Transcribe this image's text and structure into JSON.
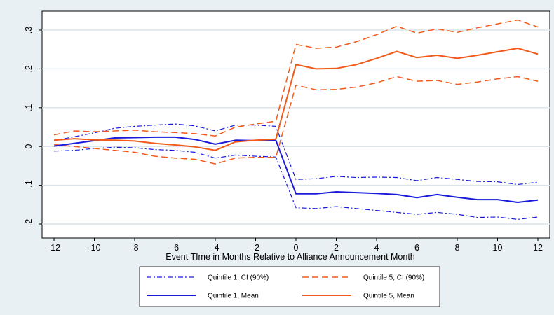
{
  "chart_data": {
    "type": "line",
    "title": "",
    "xlabel": "Event TIme in Months Relative to Alliance Announcement Month",
    "ylabel": "",
    "x": [
      -12,
      -11,
      -10,
      -9,
      -8,
      -7,
      -6,
      -5,
      -4,
      -3,
      -2,
      -1,
      0,
      1,
      2,
      3,
      4,
      5,
      6,
      7,
      8,
      9,
      10,
      11,
      12
    ],
    "xlim": [
      -12,
      12
    ],
    "ylim": [
      -0.2,
      0.3
    ],
    "xticks": [
      -12,
      -10,
      -8,
      -6,
      -4,
      -2,
      0,
      2,
      4,
      6,
      8,
      10,
      12
    ],
    "xtick_labels": [
      "-12",
      "-10",
      "-8",
      "-6",
      "-4",
      "-2",
      "0",
      "2",
      "4",
      "6",
      "8",
      "10",
      "12"
    ],
    "yticks": [
      -0.2,
      -0.1,
      0,
      0.1,
      0.2,
      0.3
    ],
    "ytick_labels": [
      "-.2",
      "-.1",
      "0",
      ".1",
      ".2",
      ".3"
    ],
    "grid": "horizontal",
    "legend_position": "bottom",
    "series": [
      {
        "name": "Quintile 1, CI (90%)",
        "style": "dash-dot",
        "color": "#1a1adc",
        "width": 1.2,
        "values": [
          0.015,
          0.025,
          0.035,
          0.047,
          0.052,
          0.055,
          0.058,
          0.053,
          0.04,
          0.055,
          0.055,
          0.052,
          -0.085,
          -0.083,
          -0.077,
          -0.08,
          -0.079,
          -0.08,
          -0.088,
          -0.08,
          -0.085,
          -0.09,
          -0.091,
          -0.098,
          -0.092
        ]
      },
      {
        "name": "",
        "style": "dash-dot",
        "color": "#1a1adc",
        "width": 1.2,
        "values": [
          -0.012,
          -0.01,
          -0.005,
          -0.002,
          -0.003,
          -0.008,
          -0.01,
          -0.015,
          -0.03,
          -0.022,
          -0.025,
          -0.027,
          -0.158,
          -0.16,
          -0.155,
          -0.16,
          -0.165,
          -0.17,
          -0.175,
          -0.17,
          -0.175,
          -0.183,
          -0.182,
          -0.188,
          -0.182
        ]
      },
      {
        "name": "Quintile 5, CI (90%)",
        "style": "dashed",
        "color": "#f25a1a",
        "width": 1.5,
        "values": [
          0.03,
          0.04,
          0.038,
          0.04,
          0.042,
          0.038,
          0.036,
          0.033,
          0.027,
          0.05,
          0.058,
          0.065,
          0.263,
          0.253,
          0.256,
          0.27,
          0.288,
          0.31,
          0.292,
          0.303,
          0.294,
          0.306,
          0.316,
          0.326,
          0.308
        ]
      },
      {
        "name": "",
        "style": "dashed",
        "color": "#f25a1a",
        "width": 1.5,
        "values": [
          0.005,
          0.0,
          -0.005,
          -0.01,
          -0.015,
          -0.025,
          -0.03,
          -0.033,
          -0.045,
          -0.03,
          -0.028,
          -0.028,
          0.158,
          0.146,
          0.147,
          0.153,
          0.164,
          0.18,
          0.168,
          0.17,
          0.16,
          0.166,
          0.174,
          0.18,
          0.168
        ]
      },
      {
        "name": "Quintile 1, Mean",
        "style": "solid",
        "color": "#1a1adc",
        "width": 2,
        "values": [
          0.001,
          0.008,
          0.015,
          0.022,
          0.023,
          0.024,
          0.024,
          0.018,
          0.006,
          0.016,
          0.015,
          0.016,
          -0.122,
          -0.122,
          -0.117,
          -0.119,
          -0.121,
          -0.124,
          -0.132,
          -0.124,
          -0.131,
          -0.137,
          -0.137,
          -0.144,
          -0.138
        ]
      },
      {
        "name": "Quintile 5, Mean",
        "style": "solid",
        "color": "#f25a1a",
        "width": 2,
        "values": [
          0.016,
          0.02,
          0.017,
          0.016,
          0.014,
          0.008,
          0.004,
          -0.001,
          -0.01,
          0.012,
          0.016,
          0.019,
          0.211,
          0.2,
          0.201,
          0.211,
          0.227,
          0.245,
          0.229,
          0.235,
          0.227,
          0.235,
          0.244,
          0.253,
          0.238
        ]
      }
    ]
  }
}
